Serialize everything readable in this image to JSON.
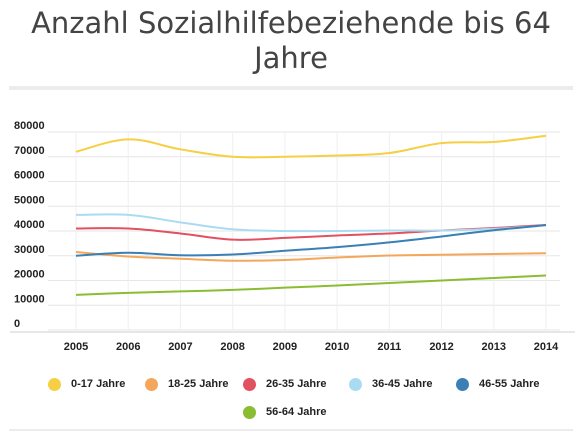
{
  "chart_data": {
    "type": "line",
    "title": "Anzahl Sozialhilfebeziehende bis 64 Jahre",
    "x": [
      "2005",
      "2006",
      "2007",
      "2008",
      "2009",
      "2010",
      "2011",
      "2012",
      "2013",
      "2014"
    ],
    "y_ticks": [
      "80000",
      "70000",
      "60000",
      "50000",
      "40000",
      "30000",
      "20000",
      "10000",
      "0"
    ],
    "ylim": [
      0,
      80000
    ],
    "grid": true,
    "legend_position": "bottom",
    "series": [
      {
        "name": "0-17 Jahre",
        "color": "#f6cf45",
        "values": [
          72000,
          77000,
          73000,
          70000,
          70000,
          70500,
          71500,
          75500,
          76000,
          78500
        ]
      },
      {
        "name": "18-25 Jahre",
        "color": "#f4a65a",
        "values": [
          31500,
          29700,
          28800,
          28000,
          28300,
          29300,
          30100,
          30400,
          30700,
          31000
        ]
      },
      {
        "name": "26-35 Jahre",
        "color": "#e2515f",
        "values": [
          41000,
          41000,
          39000,
          36500,
          37200,
          38200,
          39000,
          40200,
          41200,
          42400
        ]
      },
      {
        "name": "36-45 Jahre",
        "color": "#a9dcf2",
        "values": [
          46500,
          46500,
          43500,
          40700,
          40000,
          40000,
          40200,
          40200,
          40900,
          42200
        ]
      },
      {
        "name": "46-55 Jahre",
        "color": "#3a7fb6",
        "values": [
          30000,
          31200,
          30200,
          30500,
          32000,
          33500,
          35400,
          37800,
          40300,
          42400
        ]
      },
      {
        "name": "56-64 Jahre",
        "color": "#8bbd32",
        "values": [
          14200,
          15000,
          15600,
          16200,
          17100,
          18000,
          19000,
          20000,
          21000,
          22000
        ]
      }
    ]
  }
}
